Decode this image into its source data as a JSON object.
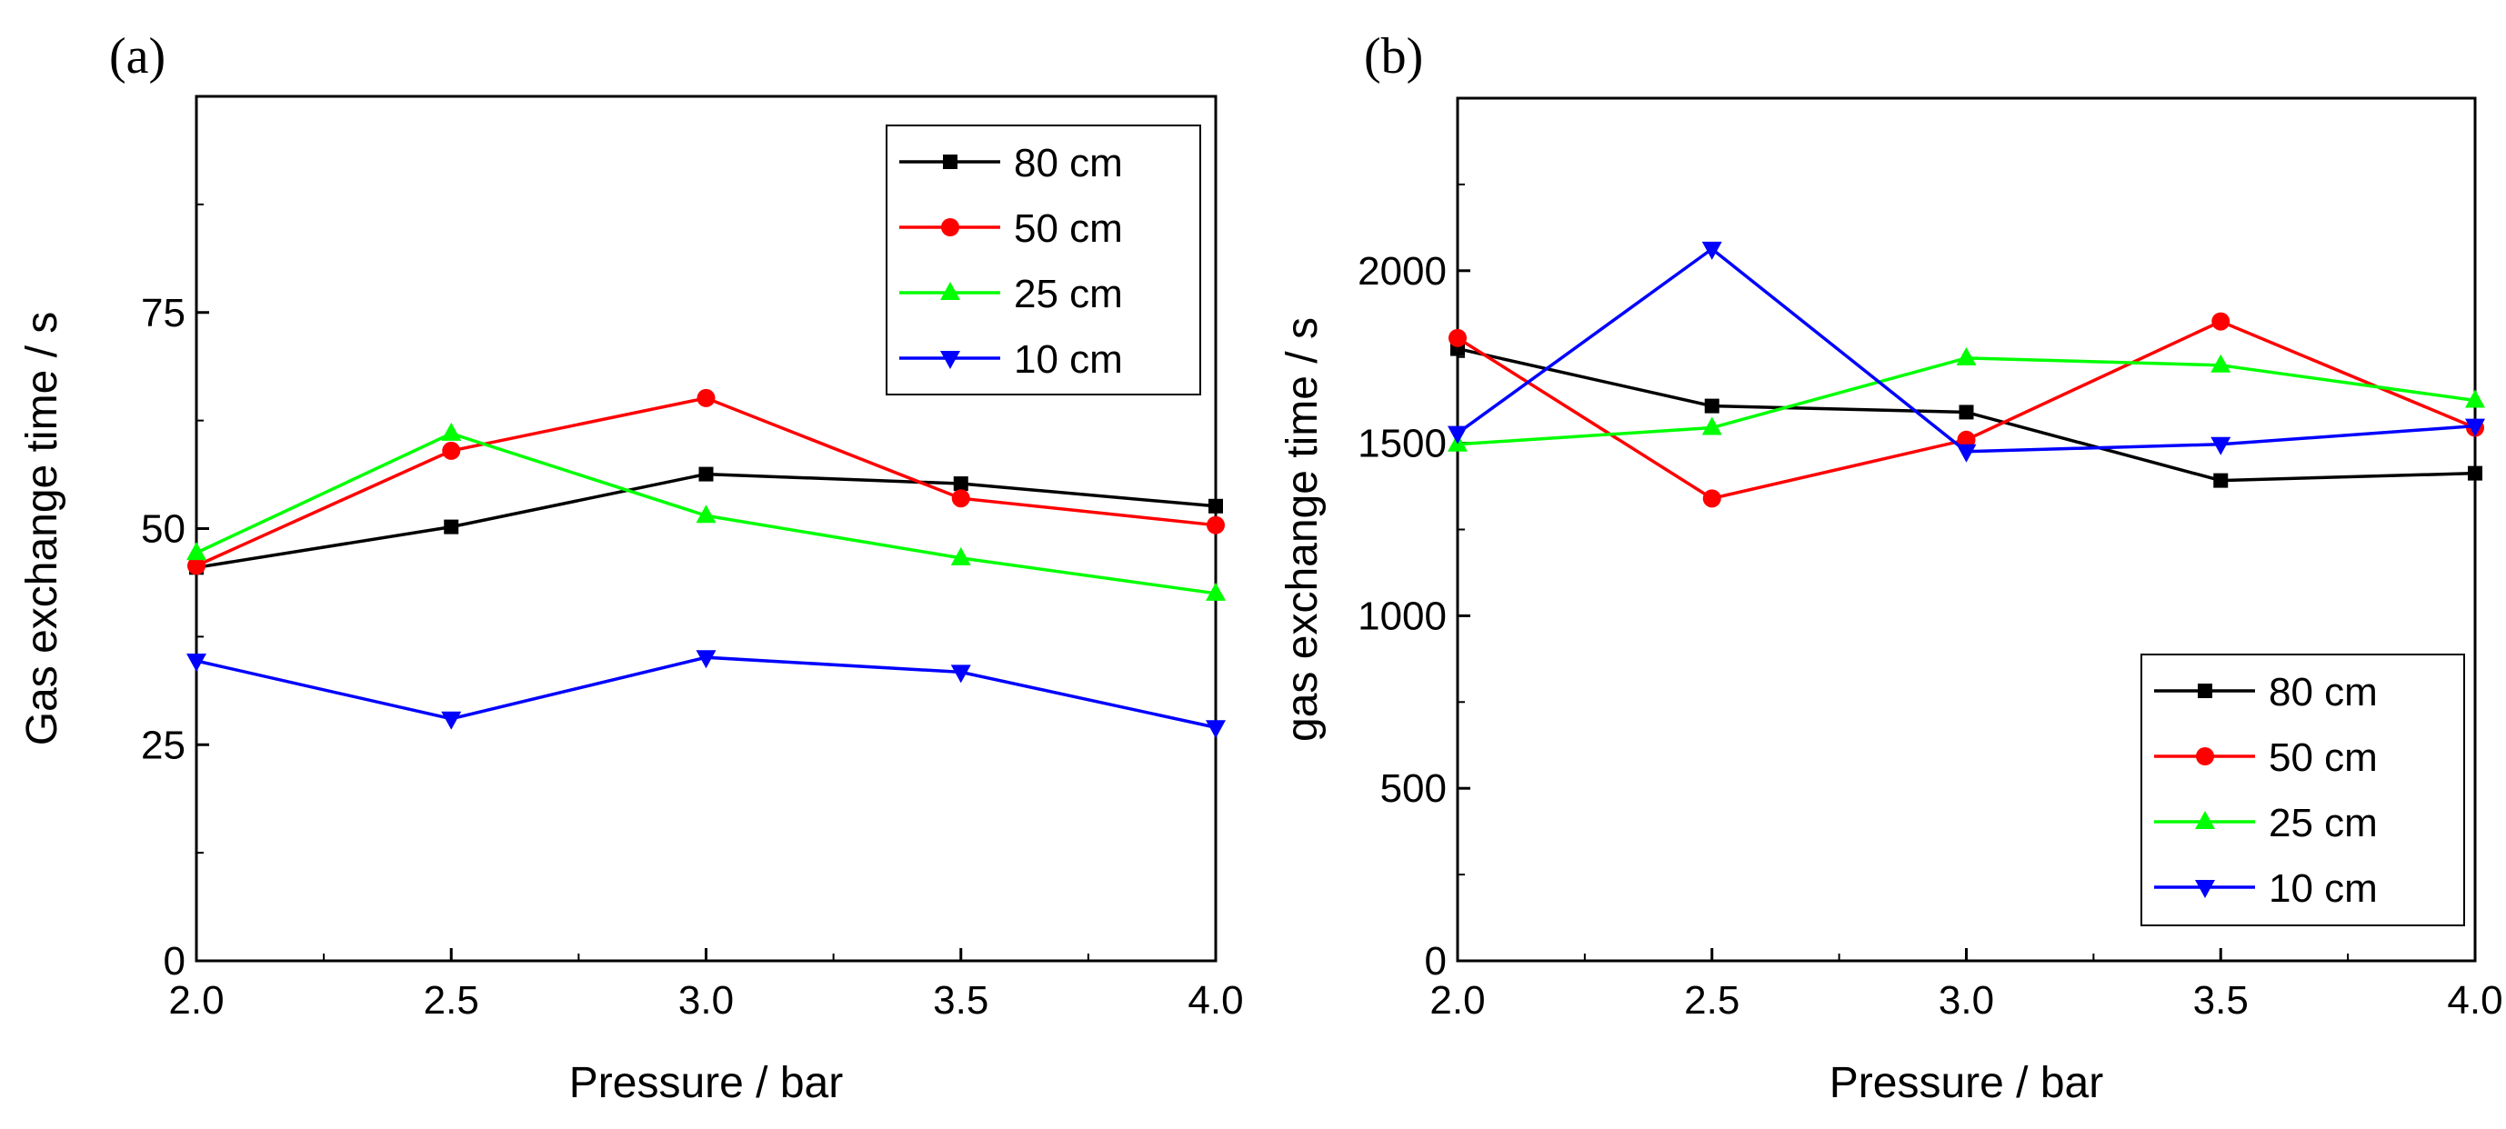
{
  "chart_data": [
    {
      "type": "line",
      "panel_label": "(a)",
      "xlabel": "Pressure  /  bar",
      "ylabel": "Gas exchange time  /  s",
      "x": [
        2.0,
        2.5,
        3.0,
        3.5,
        4.0
      ],
      "xticks": [
        "2.0",
        "2.5",
        "3.0",
        "3.5",
        "4.0"
      ],
      "xlim": [
        2.0,
        4.0
      ],
      "ylim": [
        0,
        100
      ],
      "yticks": [
        0,
        25,
        50,
        75
      ],
      "legend_position": "top-right",
      "series": [
        {
          "name": "80 cm",
          "color": "#000000",
          "marker": "square",
          "values": [
            45.5,
            50.2,
            56.3,
            55.2,
            52.6
          ]
        },
        {
          "name": "50 cm",
          "color": "#ff0000",
          "marker": "circle",
          "values": [
            45.7,
            59.0,
            65.1,
            53.5,
            50.4
          ]
        },
        {
          "name": "25 cm",
          "color": "#00ff00",
          "marker": "triangle-up",
          "values": [
            47.2,
            61.0,
            51.5,
            46.6,
            42.5
          ]
        },
        {
          "name": "10 cm",
          "color": "#0000ff",
          "marker": "triangle-down",
          "values": [
            34.7,
            28.0,
            35.1,
            33.4,
            27.0
          ]
        }
      ]
    },
    {
      "type": "line",
      "panel_label": "(b)",
      "xlabel": "Pressure  /  bar",
      "ylabel": "gas exchange time  /  s",
      "x": [
        2.0,
        2.5,
        3.0,
        3.5,
        4.0
      ],
      "xticks": [
        "2.0",
        "2.5",
        "3.0",
        "3.5",
        "4.0"
      ],
      "xlim": [
        2.0,
        4.0
      ],
      "ylim": [
        0,
        2500
      ],
      "yticks": [
        0,
        500,
        1000,
        1500,
        2000
      ],
      "legend_position": "bottom-right",
      "series": [
        {
          "name": "80 cm",
          "color": "#000000",
          "marker": "square",
          "values": [
            1774,
            1608,
            1590,
            1392,
            1413
          ]
        },
        {
          "name": "50 cm",
          "color": "#ff0000",
          "marker": "circle",
          "values": [
            1805,
            1340,
            1510,
            1853,
            1545
          ]
        },
        {
          "name": "25 cm",
          "color": "#00ff00",
          "marker": "triangle-up",
          "values": [
            1497,
            1545,
            1747,
            1726,
            1624
          ]
        },
        {
          "name": "10 cm",
          "color": "#0000ff",
          "marker": "triangle-down",
          "values": [
            1529,
            2063,
            1476,
            1497,
            1550
          ]
        }
      ]
    }
  ]
}
